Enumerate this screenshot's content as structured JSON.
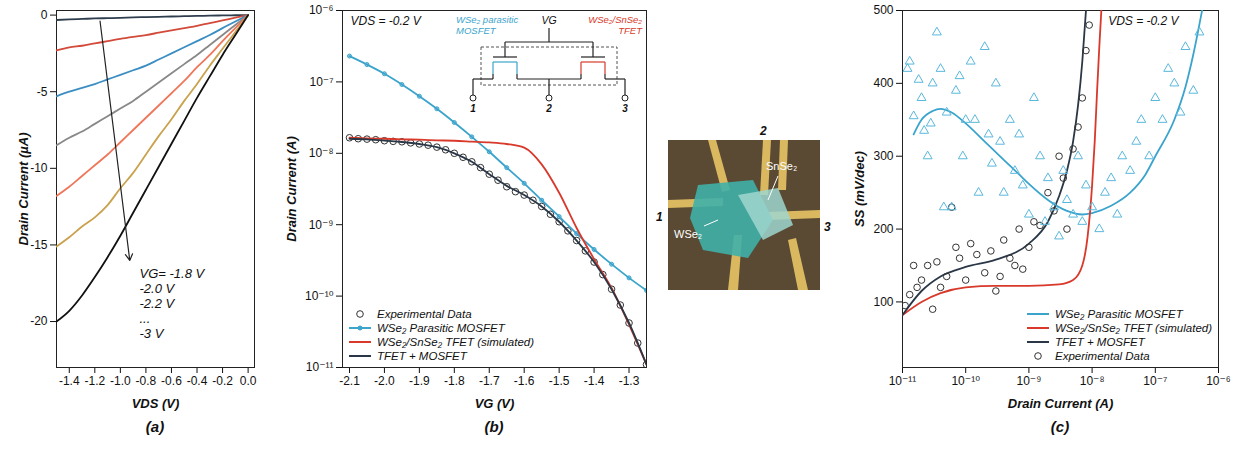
{
  "chart_data": [
    {
      "type": "line",
      "title": "(a)",
      "x_label": "VDS (V)",
      "y_label": "Drain Current (µA)",
      "x": [
        -1.5,
        -1.4,
        -1.3,
        -1.2,
        -1.1,
        -1,
        -0.9,
        -0.8,
        -0.7,
        -0.6,
        -0.5,
        -0.4,
        -0.3,
        -0.2,
        -0.1,
        0
      ],
      "series": [
        {
          "color": "#2f3e4e",
          "values": [
            -0.32,
            -0.28,
            -0.25,
            -0.22,
            -0.2,
            -0.18,
            -0.15,
            -0.13,
            -0.11,
            -0.09,
            -0.07,
            -0.05,
            -0.04,
            -0.02,
            -0.01,
            0
          ]
        },
        {
          "color": "#d24a3a",
          "values": [
            -2.3,
            -2.1,
            -2.0,
            -1.85,
            -1.7,
            -1.55,
            -1.42,
            -1.3,
            -1.15,
            -1.0,
            -0.85,
            -0.7,
            -0.52,
            -0.35,
            -0.17,
            0
          ]
        },
        {
          "color": "#3b8ec2",
          "values": [
            -5.3,
            -5.0,
            -4.75,
            -4.5,
            -4.2,
            -3.9,
            -3.6,
            -3.3,
            -2.9,
            -2.5,
            -2.1,
            -1.7,
            -1.3,
            -0.85,
            -0.42,
            0
          ]
        },
        {
          "color": "#888888",
          "values": [
            -8.5,
            -8.0,
            -7.6,
            -7.1,
            -6.6,
            -6.1,
            -5.6,
            -5.0,
            -4.4,
            -3.8,
            -3.2,
            -2.6,
            -1.95,
            -1.3,
            -0.65,
            0
          ]
        },
        {
          "color": "#f0765a",
          "values": [
            -11.8,
            -11.2,
            -10.5,
            -9.8,
            -9.1,
            -8.3,
            -7.5,
            -6.7,
            -5.9,
            -5.1,
            -4.3,
            -3.4,
            -2.6,
            -1.7,
            -0.85,
            0
          ]
        },
        {
          "color": "#c9a24e",
          "values": [
            -15.1,
            -14.5,
            -13.8,
            -13.2,
            -12.4,
            -11.3,
            -10.3,
            -9.1,
            -7.9,
            -6.8,
            -5.6,
            -4.5,
            -3.3,
            -2.2,
            -1.1,
            0
          ]
        },
        {
          "color": "#111111",
          "values": [
            -20.0,
            -19.3,
            -18.3,
            -17.1,
            -15.8,
            -14.4,
            -12.9,
            -11.4,
            -9.9,
            -8.4,
            -6.9,
            -5.4,
            -4.0,
            -2.6,
            -1.3,
            0
          ]
        }
      ],
      "xlim": [
        -1.5,
        0.05
      ],
      "ylim": [
        -23,
        0.3
      ],
      "xticks": [
        -1.4,
        -1.2,
        {
          "value": -1,
          "label": "-1.0"
        },
        -0.8,
        -0.6,
        -0.4,
        -0.2,
        {
          "value": 0,
          "label": "0.0"
        }
      ],
      "yticks": [
        0,
        -5,
        -10,
        -15,
        -20
      ],
      "annotations": [
        "VG= -1.8 V",
        "-2.0 V",
        "-2.2 V",
        "...",
        "-3 V"
      ]
    },
    {
      "type": "line",
      "title": "(b)",
      "log": "y",
      "x_label": "VG (V)",
      "y_label": "Drain Current (A)",
      "series": [
        {
          "name": "Experimental Data",
          "type": "scatter",
          "marker": "circle",
          "color": "#333333",
          "x": [
            -2.1,
            -2.075,
            -2.05,
            -2.025,
            -2,
            -1.975,
            -1.95,
            -1.925,
            -1.9,
            -1.875,
            -1.85,
            -1.825,
            -1.8,
            -1.775,
            -1.75,
            -1.725,
            -1.7,
            -1.675,
            -1.65,
            -1.625,
            -1.6,
            -1.575,
            -1.55,
            -1.525,
            -1.5,
            -1.475,
            -1.45,
            -1.425,
            -1.4,
            -1.375,
            -1.35,
            -1.325,
            -1.3,
            -1.275,
            -1.25
          ],
          "values": [
            1.65e-08,
            1.6e-08,
            1.58e-08,
            1.55e-08,
            1.5e-08,
            1.47e-08,
            1.45e-08,
            1.4e-08,
            1.35e-08,
            1.3e-08,
            1.22e-08,
            1.12e-08,
            1e-08,
            8.8e-09,
            7.6e-09,
            6.3e-09,
            5.1e-09,
            4.2e-09,
            3.4e-09,
            2.9e-09,
            2.6e-09,
            2.2e-09,
            1.8e-09,
            1.4e-09,
            1.1e-09,
            8.2e-10,
            6e-10,
            4.3e-10,
            3e-10,
            2e-10,
            1.25e-10,
            7.5e-11,
            4.2e-11,
            2.2e-11,
            1.1e-11
          ]
        },
        {
          "name": "WSe₂ Parasitic MOSFET",
          "type": "line",
          "marker": "circle",
          "color": "#3ba4cc",
          "x": [
            -2.1,
            -2.05,
            -2,
            -1.95,
            -1.9,
            -1.85,
            -1.8,
            -1.75,
            -1.7,
            -1.65,
            -1.6,
            -1.55,
            -1.5,
            -1.45,
            -1.4,
            -1.35,
            -1.3,
            -1.25
          ],
          "values": [
            2.3e-07,
            1.75e-07,
            1.3e-07,
            9.2e-08,
            6.3e-08,
            4.2e-08,
            2.7e-08,
            1.7e-08,
            1.05e-08,
            6.3e-09,
            3.8e-09,
            2.2e-09,
            1.3e-09,
            7.5e-10,
            4.5e-10,
            2.8e-10,
            1.8e-10,
            1.2e-10
          ]
        },
        {
          "name": "WSe₂/SnSe₂ TFET (simulated)",
          "type": "line",
          "color": "#d8392b",
          "x": [
            -2.1,
            -2.05,
            -2,
            -1.95,
            -1.9,
            -1.85,
            -1.8,
            -1.75,
            -1.7,
            -1.65,
            -1.6,
            -1.55,
            -1.5,
            -1.45,
            -1.4,
            -1.35,
            -1.3,
            -1.25
          ],
          "values": [
            1.65e-08,
            1.62e-08,
            1.6e-08,
            1.57e-08,
            1.55e-08,
            1.52e-08,
            1.5e-08,
            1.46e-08,
            1.42e-08,
            1.35e-08,
            1.2e-08,
            7e-09,
            2.8e-09,
            9e-10,
            3.3e-10,
            1.3e-10,
            4e-11,
            1.1e-11
          ]
        },
        {
          "name": "TFET + MOSFET",
          "type": "line",
          "color": "#2a3746",
          "x": [
            -2.1,
            -2.05,
            -2,
            -1.95,
            -1.9,
            -1.85,
            -1.8,
            -1.75,
            -1.7,
            -1.65,
            -1.6,
            -1.55,
            -1.5,
            -1.45,
            -1.4,
            -1.35,
            -1.3,
            -1.25
          ],
          "values": [
            1.6e-08,
            1.57e-08,
            1.5e-08,
            1.44e-08,
            1.35e-08,
            1.22e-08,
            1e-08,
            7.6e-09,
            5.1e-09,
            3.5e-09,
            2.6e-09,
            1.8e-09,
            1.1e-09,
            6e-10,
            3e-10,
            1.25e-10,
            4.2e-11,
            1.1e-11
          ]
        }
      ],
      "xlim": [
        -2.12,
        -1.25
      ],
      "ylim": [
        1e-11,
        1e-06
      ],
      "xticks": [
        -2.1,
        {
          "value": -2,
          "label": "-2.0"
        },
        -1.9,
        -1.8,
        -1.7,
        -1.6,
        -1.5,
        -1.4,
        -1.3
      ],
      "yticks": [
        {
          "value": 1e-11,
          "label": "10⁻¹¹"
        },
        {
          "value": 1e-10,
          "label": "10⁻¹⁰"
        },
        {
          "value": 1e-09,
          "label": "10⁻⁹"
        },
        {
          "value": 1e-08,
          "label": "10⁻⁸"
        },
        {
          "value": 1e-07,
          "label": "10⁻⁷"
        },
        {
          "value": 1e-06,
          "label": "10⁻⁶"
        }
      ],
      "legend": "lower left",
      "annotations": [
        "VDS = -0.2 V"
      ],
      "circuit": {
        "gate": "VG",
        "mosfet": "WSe₂ parasitic MOSFET",
        "tfet": "WSe₂/SnSe₂ TFET",
        "terminals": [
          "1",
          "2",
          "3"
        ]
      },
      "photo": {
        "labels": [
          "WSe₂",
          "SnSe₂"
        ],
        "terminals": [
          "1",
          "2",
          "3"
        ]
      }
    },
    {
      "type": "line",
      "title": "(c)",
      "log": "x",
      "x_label": "Drain Current (A)",
      "y_label": "SS (mV/dec)",
      "series": [
        {
          "name": "WSe₂ Parasitic MOSFET",
          "type": "line",
          "color": "#3ba4cc",
          "x": [
            1.5e-11,
            2e-11,
            3e-11,
            4e-11,
            6e-11,
            1e-10,
            2e-10,
            4e-10,
            7e-10,
            1e-09,
            2e-09,
            4e-09,
            7e-09,
            1e-08,
            2e-08,
            4e-08,
            7e-08,
            1e-07,
            2e-07,
            3e-07,
            4e-07,
            5.5e-07
          ],
          "values": [
            330,
            350,
            362,
            365,
            360,
            345,
            320,
            295,
            275,
            262,
            240,
            225,
            220,
            222,
            232,
            250,
            275,
            300,
            350,
            395,
            440,
            500
          ]
        },
        {
          "name": "WSe₂/SnSe₂ TFET (simulated)",
          "type": "line",
          "color": "#d8392b",
          "x": [
            1e-11,
            2e-11,
            4e-11,
            1e-10,
            3e-10,
            1e-09,
            3e-09,
            5e-09,
            7e-09,
            8.5e-09,
            1e-08,
            1.1e-08,
            1.2e-08,
            1.3e-08,
            1.4e-08
          ],
          "values": [
            82,
            100,
            112,
            120,
            122,
            122,
            124,
            130,
            150,
            190,
            260,
            320,
            390,
            450,
            500
          ]
        },
        {
          "name": "TFET + MOSFET",
          "type": "line",
          "color": "#2a3746",
          "x": [
            1e-11,
            2e-11,
            4e-11,
            1e-10,
            3e-10,
            1e-09,
            2e-09,
            3e-09,
            4e-09,
            5e-09,
            6e-09,
            7e-09,
            8e-09
          ],
          "values": [
            82,
            115,
            135,
            148,
            158,
            180,
            210,
            245,
            280,
            320,
            370,
            430,
            500
          ]
        },
        {
          "name": "Experimental Data",
          "type": "scatter",
          "marker": "circle",
          "color": "#333333",
          "x": [
            1.1e-11,
            1.3e-11,
            1.5e-11,
            1.7e-11,
            2e-11,
            2.5e-11,
            3e-11,
            3.5e-11,
            4e-11,
            5e-11,
            6e-11,
            7e-11,
            8e-11,
            1e-10,
            1.2e-10,
            1.5e-10,
            2e-10,
            2.5e-10,
            3e-10,
            3.5e-10,
            4e-10,
            5e-10,
            6e-10,
            7e-10,
            8e-10,
            1e-09,
            1.2e-09,
            1.5e-09,
            2e-09,
            2.5e-09,
            3e-09,
            3.5e-09,
            4e-09,
            5e-09,
            6e-09,
            7e-09,
            8e-09,
            9e-09
          ],
          "values": [
            95,
            110,
            150,
            120,
            130,
            150,
            90,
            155,
            120,
            135,
            230,
            175,
            160,
            130,
            180,
            165,
            140,
            170,
            115,
            135,
            185,
            160,
            150,
            200,
            145,
            175,
            210,
            205,
            250,
            225,
            300,
            270,
            200,
            310,
            340,
            380,
            445,
            480
          ]
        },
        {
          "type": "scatter",
          "marker": "triangle",
          "color": "#5ab8dc",
          "x": [
            1.2e-11,
            1.3e-11,
            1.5e-11,
            1.8e-11,
            2e-11,
            2.2e-11,
            2.5e-11,
            2.8e-11,
            3e-11,
            3.5e-11,
            4e-11,
            4.5e-11,
            5e-11,
            6e-11,
            7e-11,
            8e-11,
            9e-11,
            1e-10,
            1.2e-10,
            1.4e-10,
            1.6e-10,
            2e-10,
            2.3e-10,
            2.6e-10,
            3e-10,
            3.5e-10,
            4e-10,
            5e-10,
            6e-10,
            7e-10,
            8e-10,
            1e-09,
            1.2e-09,
            1.5e-09,
            1.8e-09,
            2e-09,
            2.5e-09,
            3e-09,
            3.5e-09,
            4e-09,
            5e-09,
            6e-09,
            7e-09,
            8e-09,
            1e-08,
            1.3e-08,
            1.6e-08,
            2e-08,
            2.5e-08,
            3e-08,
            4e-08,
            5e-08,
            6e-08,
            8e-08,
            1e-07,
            1.3e-07,
            1.6e-07,
            2e-07,
            2.5e-07,
            3e-07,
            4e-07,
            5e-07
          ],
          "values": [
            420,
            430,
            355,
            405,
            380,
            335,
            300,
            345,
            400,
            470,
            420,
            230,
            360,
            230,
            390,
            410,
            300,
            350,
            430,
            350,
            250,
            450,
            330,
            290,
            400,
            320,
            250,
            350,
            280,
            330,
            260,
            220,
            380,
            300,
            210,
            270,
            230,
            190,
            280,
            240,
            220,
            300,
            210,
            260,
            230,
            200,
            250,
            270,
            220,
            300,
            280,
            320,
            350,
            300,
            380,
            350,
            420,
            400,
            360,
            450,
            390,
            470
          ]
        }
      ],
      "xlim": [
        1e-11,
        1e-06
      ],
      "ylim": [
        10,
        500
      ],
      "xticks": [
        {
          "value": 1e-11,
          "label": "10⁻¹¹"
        },
        {
          "value": 1e-10,
          "label": "10⁻¹⁰"
        },
        {
          "value": 1e-09,
          "label": "10⁻⁹"
        },
        {
          "value": 1e-08,
          "label": "10⁻⁸"
        },
        {
          "value": 1e-07,
          "label": "10⁻⁷"
        },
        {
          "value": 1e-06,
          "label": "10⁻⁶"
        }
      ],
      "yticks": [
        100,
        200,
        300,
        400,
        500
      ],
      "legend": "lower right",
      "annotations": [
        "VDS = -0.2 V"
      ]
    }
  ]
}
